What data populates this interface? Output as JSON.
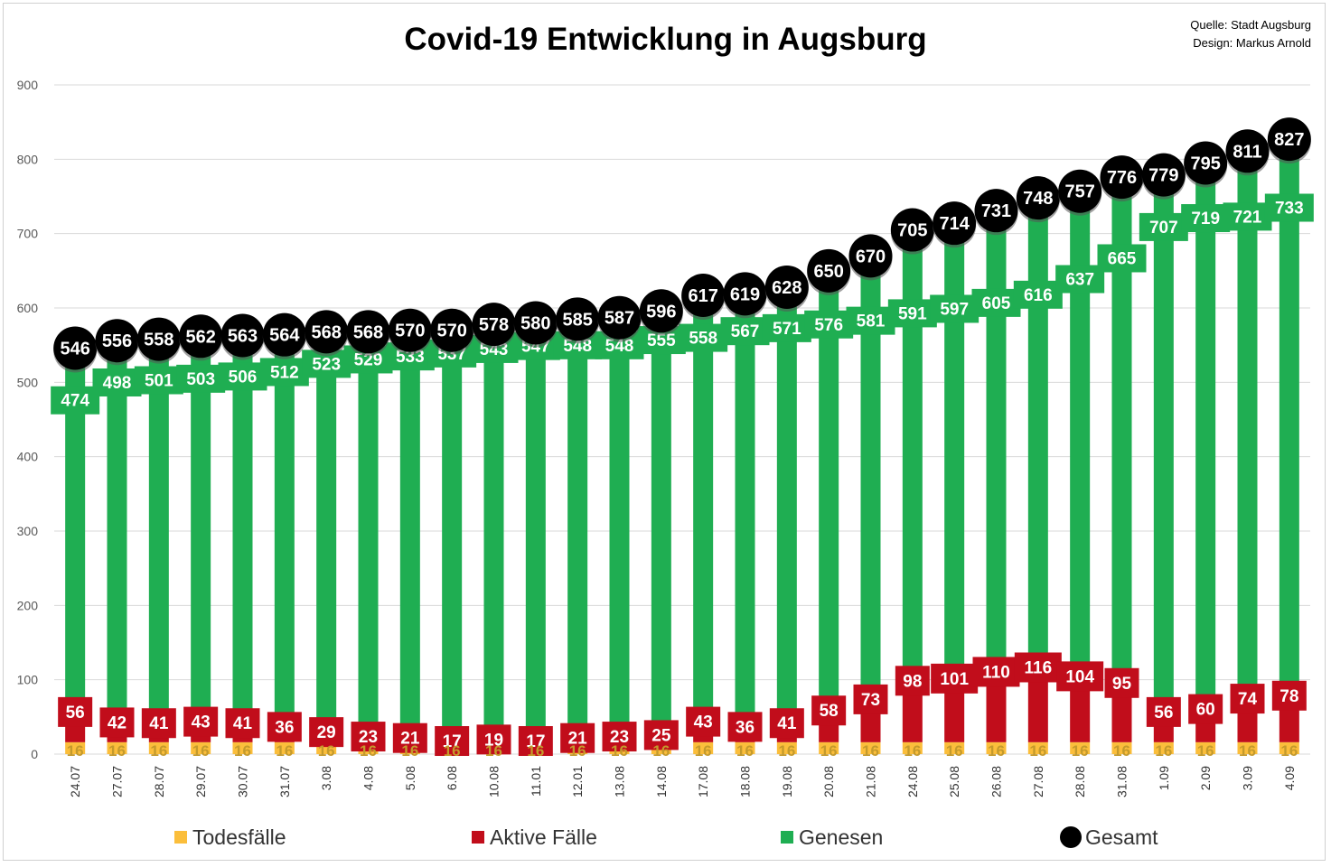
{
  "source": {
    "line1": "Quelle: Stadt Augsburg",
    "line2": "Design: Markus Arnold"
  },
  "colors": {
    "todesfaelle": "#fbbe3b",
    "aktive": "#c10d1b",
    "genesen": "#1fae52",
    "gesamt": "#000000"
  },
  "chart_data": {
    "type": "bar",
    "title": "Covid-19 Entwicklung in Augsburg",
    "ylim": [
      0,
      900
    ],
    "yticks": [
      0,
      100,
      200,
      300,
      400,
      500,
      600,
      700,
      800,
      900
    ],
    "grid": true,
    "legend_position": "bottom",
    "categories": [
      "24.07",
      "27.07",
      "28.07",
      "29.07",
      "30.07",
      "31.07",
      "3.08",
      "4.08",
      "5.08",
      "6.08",
      "10.08",
      "11.01",
      "12.01",
      "13.08",
      "14.08",
      "17.08",
      "18.08",
      "19.08",
      "20.08",
      "21.08",
      "24.08",
      "25.08",
      "26.08",
      "27.08",
      "28.08",
      "31.08",
      "1.09",
      "2.09",
      "3.09",
      "4.09"
    ],
    "series": [
      {
        "name": "Todesfälle",
        "values": [
          16,
          16,
          16,
          16,
          16,
          16,
          16,
          16,
          16,
          16,
          16,
          16,
          16,
          16,
          16,
          16,
          16,
          16,
          16,
          16,
          16,
          16,
          16,
          16,
          16,
          16,
          16,
          16,
          16,
          16
        ]
      },
      {
        "name": "Aktive Fälle",
        "values": [
          56,
          42,
          41,
          43,
          41,
          36,
          29,
          23,
          21,
          17,
          19,
          17,
          21,
          23,
          25,
          43,
          36,
          41,
          58,
          73,
          98,
          101,
          110,
          116,
          104,
          95,
          56,
          60,
          74,
          78
        ]
      },
      {
        "name": "Genesen",
        "values": [
          474,
          498,
          501,
          503,
          506,
          512,
          523,
          529,
          533,
          537,
          543,
          547,
          548,
          548,
          555,
          558,
          567,
          571,
          576,
          581,
          591,
          597,
          605,
          616,
          637,
          665,
          707,
          719,
          721,
          733
        ]
      },
      {
        "name": "Gesamt",
        "values": [
          546,
          556,
          558,
          562,
          563,
          564,
          568,
          568,
          570,
          570,
          578,
          580,
          585,
          587,
          596,
          617,
          619,
          628,
          650,
          670,
          705,
          714,
          731,
          748,
          757,
          776,
          779,
          795,
          811,
          827
        ]
      }
    ]
  }
}
